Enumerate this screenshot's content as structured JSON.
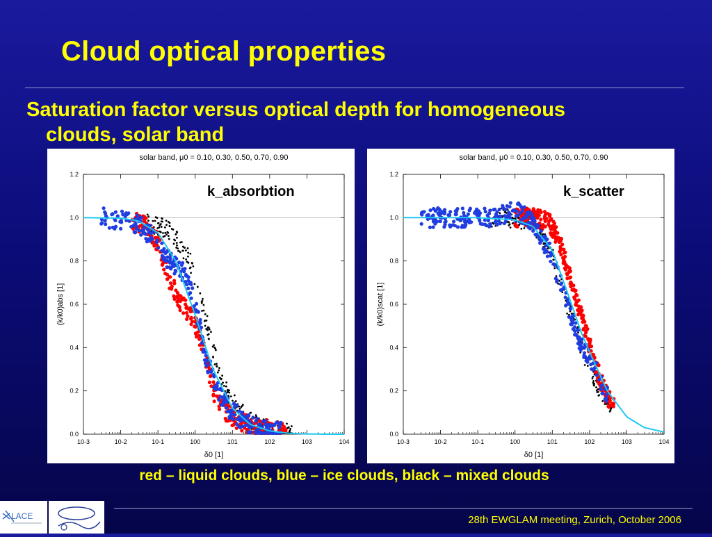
{
  "slide": {
    "title": "Cloud optical properties",
    "bullet_line1": "Saturation factor versus optical depth for homogeneous",
    "bullet_line2": "clouds, solar band",
    "caption": "red – liquid clouds, blue – ice clouds, black – mixed clouds",
    "footer": "28th EWGLAM meeting, Zurich, October 2006",
    "logo_text": "LACE"
  },
  "colors": {
    "background": "#0c0c7a",
    "title_yellow": "#ffff00",
    "liquid": "#ff0000",
    "ice": "#1f3de0",
    "mixed": "#000000",
    "fit_curve": "#1ec8f0"
  },
  "chart_data": [
    {
      "type": "scatter",
      "title": "solar band, μ0 = 0.10, 0.30, 0.50, 0.70, 0.90",
      "label": "k_absorbtion",
      "xlabel": "δ0 [1]",
      "ylabel": "(k/k0)abs [1]",
      "xscale": "log",
      "xlim": [
        0.001,
        10000
      ],
      "ylim": [
        0,
        1.2
      ],
      "xticks": [
        "10-3",
        "10-2",
        "10-1",
        "100",
        "101",
        "102",
        "103",
        "104"
      ],
      "yticks": [
        "0.0",
        "0.2",
        "0.4",
        "0.6",
        "0.8",
        "1.0",
        "1.2"
      ],
      "reference_line_y": 1.0,
      "fit_curve": {
        "x": [
          0.001,
          0.01,
          0.03,
          0.1,
          0.3,
          1,
          3,
          10,
          30,
          100,
          300,
          1000,
          3000,
          10000
        ],
        "y": [
          1.0,
          0.998,
          0.985,
          0.93,
          0.8,
          0.55,
          0.3,
          0.12,
          0.045,
          0.015,
          0.005,
          0.001,
          0.0,
          0.0
        ]
      },
      "series": [
        {
          "name": "red – liquid clouds",
          "color": "#ff0000",
          "x": [
            0.02,
            0.05,
            0.1,
            0.2,
            0.4,
            0.8,
            1.5,
            3,
            6,
            15,
            40,
            120,
            300
          ],
          "y": [
            0.99,
            0.96,
            0.88,
            0.72,
            0.6,
            0.55,
            0.42,
            0.2,
            0.11,
            0.06,
            0.03,
            0.015,
            0.01
          ]
        },
        {
          "name": "blue – ice clouds",
          "color": "#1f3de0",
          "x": [
            0.003,
            0.01,
            0.03,
            0.08,
            0.2,
            0.5,
            1,
            2,
            4,
            8,
            20,
            60,
            200
          ],
          "y": [
            1.0,
            0.99,
            0.97,
            0.9,
            0.8,
            0.75,
            0.6,
            0.35,
            0.2,
            0.12,
            0.06,
            0.02,
            0.01
          ]
        },
        {
          "name": "black – mixed clouds",
          "color": "#000000",
          "x": [
            0.05,
            0.1,
            0.2,
            0.4,
            0.8,
            1.5,
            3,
            5,
            10,
            30,
            100,
            400
          ],
          "y": [
            0.98,
            0.96,
            0.94,
            0.88,
            0.78,
            0.6,
            0.4,
            0.25,
            0.15,
            0.06,
            0.02,
            0.005
          ]
        }
      ]
    },
    {
      "type": "scatter",
      "title": "solar band, μ0 = 0.10, 0.30, 0.50, 0.70, 0.90",
      "label": "k_scatter",
      "xlabel": "δ0 [1]",
      "ylabel": "(k/k0)scat [1]",
      "xscale": "log",
      "xlim": [
        0.001,
        10000
      ],
      "ylim": [
        0,
        1.2
      ],
      "xticks": [
        "10-3",
        "10-2",
        "10-1",
        "100",
        "101",
        "102",
        "103",
        "104"
      ],
      "yticks": [
        "0.0",
        "0.2",
        "0.4",
        "0.6",
        "0.8",
        "1.0",
        "1.2"
      ],
      "reference_line_y": 1.0,
      "fit_curve": {
        "x": [
          0.001,
          0.01,
          0.1,
          1,
          3,
          10,
          30,
          60,
          100,
          300,
          1000,
          3000,
          10000
        ],
        "y": [
          1.0,
          1.0,
          1.0,
          0.99,
          0.96,
          0.85,
          0.62,
          0.47,
          0.38,
          0.2,
          0.08,
          0.03,
          0.01
        ]
      },
      "series": [
        {
          "name": "red – liquid clouds",
          "color": "#ff0000",
          "x": [
            1,
            3,
            8,
            15,
            30,
            60,
            120,
            250,
            450
          ],
          "y": [
            1.0,
            1.0,
            0.98,
            0.9,
            0.72,
            0.55,
            0.36,
            0.2,
            0.13
          ]
        },
        {
          "name": "blue – ice clouds",
          "color": "#1f3de0",
          "x": [
            0.003,
            0.01,
            0.05,
            0.2,
            0.6,
            1.2,
            3,
            8,
            20,
            50,
            100,
            300
          ],
          "y": [
            1.0,
            1.0,
            1.0,
            1.0,
            1.02,
            1.03,
            0.98,
            0.85,
            0.65,
            0.45,
            0.35,
            0.18
          ]
        },
        {
          "name": "black – mixed clouds",
          "color": "#000000",
          "x": [
            0.2,
            0.6,
            1.5,
            4,
            10,
            25,
            50,
            100,
            200,
            400
          ],
          "y": [
            1.0,
            1.0,
            0.99,
            0.95,
            0.82,
            0.6,
            0.45,
            0.3,
            0.2,
            0.13
          ]
        }
      ]
    }
  ]
}
